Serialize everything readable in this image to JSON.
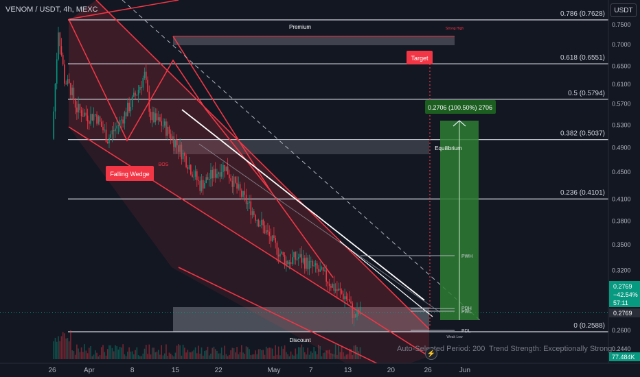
{
  "header": {
    "symbol": "VENOM / USDT, 4h, MEXC",
    "currency_button": "USDT"
  },
  "footer": {
    "period_text": "Auto-Selected Period: 200",
    "trend_text": "Trend Strength: Exceptionally Strong"
  },
  "colors": {
    "background": "#131722",
    "bear": "#f23645",
    "bull": "#089981",
    "wedge": "#f23645",
    "target_box": "#2e7d32"
  },
  "chart_data": {
    "type": "candlestick",
    "x_tick_labels": [
      "26",
      "Apr",
      "8",
      "15",
      "22",
      "May",
      "7",
      "13",
      "20",
      "26",
      "Jun"
    ],
    "y_tick_labels": [
      "0.7500",
      "0.7000",
      "0.6500",
      "0.6100",
      "0.5700",
      "0.5300",
      "0.4900",
      "0.4500",
      "0.4100",
      "0.3800",
      "0.3500",
      "0.3200",
      "0.2600",
      "0.2440"
    ],
    "y_ticks": [
      0.75,
      0.7,
      0.65,
      0.61,
      0.57,
      0.53,
      0.49,
      0.45,
      0.41,
      0.38,
      0.35,
      0.32,
      0.26,
      0.244
    ],
    "y_range": [
      0.226,
      0.77
    ],
    "y_scale": "log",
    "price_path": [
      {
        "date": "2024-03-26",
        "price": 0.505
      },
      {
        "date": "2024-03-27",
        "price": 0.74
      },
      {
        "date": "2024-03-28",
        "price": 0.62
      },
      {
        "date": "2024-03-29",
        "price": 0.6
      },
      {
        "date": "2024-03-30",
        "price": 0.56
      },
      {
        "date": "2024-04-01",
        "price": 0.545
      },
      {
        "date": "2024-04-02",
        "price": 0.55
      },
      {
        "date": "2024-04-04",
        "price": 0.505
      },
      {
        "date": "2024-04-06",
        "price": 0.535
      },
      {
        "date": "2024-04-08",
        "price": 0.575
      },
      {
        "date": "2024-04-09",
        "price": 0.6
      },
      {
        "date": "2024-04-10",
        "price": 0.63
      },
      {
        "date": "2024-04-11",
        "price": 0.545
      },
      {
        "date": "2024-04-13",
        "price": 0.53
      },
      {
        "date": "2024-04-15",
        "price": 0.5
      },
      {
        "date": "2024-04-17",
        "price": 0.465
      },
      {
        "date": "2024-04-19",
        "price": 0.43
      },
      {
        "date": "2024-04-21",
        "price": 0.445
      },
      {
        "date": "2024-04-23",
        "price": 0.46
      },
      {
        "date": "2024-04-25",
        "price": 0.425
      },
      {
        "date": "2024-04-27",
        "price": 0.4
      },
      {
        "date": "2024-04-29",
        "price": 0.375
      },
      {
        "date": "2024-05-01",
        "price": 0.35
      },
      {
        "date": "2024-05-03",
        "price": 0.33
      },
      {
        "date": "2024-05-05",
        "price": 0.335
      },
      {
        "date": "2024-05-07",
        "price": 0.325
      },
      {
        "date": "2024-05-09",
        "price": 0.315
      },
      {
        "date": "2024-05-11",
        "price": 0.3
      },
      {
        "date": "2024-05-13",
        "price": 0.29
      },
      {
        "date": "2024-05-14",
        "price": 0.272
      },
      {
        "date": "2024-05-15",
        "price": 0.2769
      }
    ],
    "fib_levels": [
      {
        "label": "0.786 (0.7628)",
        "value": 0.7628
      },
      {
        "label": "0.618 (0.6551)",
        "value": 0.6551
      },
      {
        "label": "0.5 (0.5794)",
        "value": 0.5794
      },
      {
        "label": "0.382 (0.5037)",
        "value": 0.5037
      },
      {
        "label": "0.236 (0.4101)",
        "value": 0.4101
      },
      {
        "label": "0 (0.2588)",
        "value": 0.2588
      }
    ],
    "annotations": {
      "premium": "Premium",
      "strong_high": "Strong High",
      "equilibrium": "Equilibrium",
      "discount": "Discount",
      "weak_low": "Weak Low",
      "target": "Target",
      "falling_wedge": "Falling Wedge",
      "bos": "BOS",
      "pwh": "PWH",
      "pdh": "PDH",
      "pwl": "PWL",
      "pdl": "PDL",
      "measure": "0.2706 (100.50%) 2706"
    },
    "price_labels": {
      "last_price": "0.2769",
      "change_pct": "−42.54%",
      "countdown": "57:11",
      "current": "0.2769",
      "volume": "77.484K"
    },
    "last_price": 0.2769,
    "grid": false
  }
}
